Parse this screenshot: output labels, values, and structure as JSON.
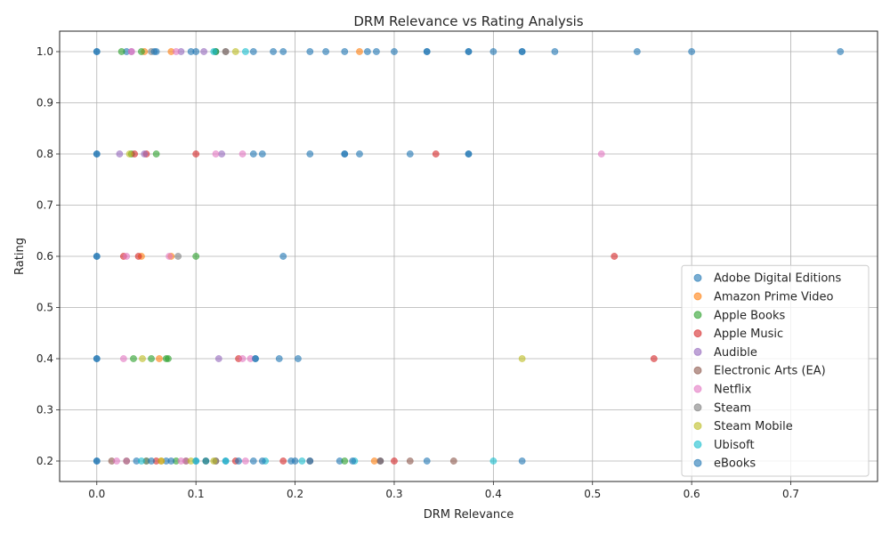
{
  "chart_data": {
    "type": "scatter",
    "title": "DRM Relevance vs Rating Analysis",
    "xlabel": "DRM Relevance",
    "ylabel": "Rating",
    "xlim": [
      -0.0375,
      0.7875
    ],
    "ylim": [
      0.16,
      1.04
    ],
    "xticks": [
      0.0,
      0.1,
      0.2,
      0.3,
      0.4,
      0.5,
      0.6,
      0.7
    ],
    "xtick_labels": [
      "0.0",
      "0.1",
      "0.2",
      "0.3",
      "0.4",
      "0.5",
      "0.6",
      "0.7"
    ],
    "yticks": [
      0.2,
      0.3,
      0.4,
      0.5,
      0.6,
      0.7,
      0.8,
      0.9,
      1.0
    ],
    "ytick_labels": [
      "0.2",
      "0.3",
      "0.4",
      "0.5",
      "0.6",
      "0.7",
      "0.8",
      "0.9",
      "1.0"
    ],
    "grid": true,
    "legend_position": "lower-right",
    "point_alpha": 0.6,
    "series": [
      {
        "name": "Adobe Digital Editions",
        "color": "#1f77b4",
        "points": [
          [
            0.0,
            1.0
          ],
          [
            0.0,
            0.8
          ],
          [
            0.0,
            0.6
          ],
          [
            0.0,
            0.4
          ],
          [
            0.0,
            0.2
          ],
          [
            0.03,
            1.0
          ],
          [
            0.06,
            1.0
          ],
          [
            0.095,
            1.0
          ],
          [
            0.12,
            1.0
          ],
          [
            0.158,
            1.0
          ],
          [
            0.188,
            1.0
          ],
          [
            0.215,
            1.0
          ],
          [
            0.25,
            1.0
          ],
          [
            0.273,
            1.0
          ],
          [
            0.3,
            1.0
          ],
          [
            0.333,
            1.0
          ],
          [
            0.375,
            1.0
          ],
          [
            0.4,
            1.0
          ],
          [
            0.429,
            1.0
          ],
          [
            0.462,
            1.0
          ],
          [
            0.545,
            1.0
          ],
          [
            0.6,
            1.0
          ],
          [
            0.75,
            1.0
          ],
          [
            0.158,
            0.8
          ],
          [
            0.167,
            0.8
          ],
          [
            0.215,
            0.8
          ],
          [
            0.25,
            0.8
          ],
          [
            0.265,
            0.8
          ],
          [
            0.316,
            0.8
          ],
          [
            0.375,
            0.8
          ],
          [
            0.188,
            0.6
          ],
          [
            0.16,
            0.4
          ],
          [
            0.184,
            0.4
          ],
          [
            0.203,
            0.4
          ],
          [
            0.04,
            0.2
          ],
          [
            0.07,
            0.2
          ],
          [
            0.1,
            0.2
          ],
          [
            0.13,
            0.2
          ],
          [
            0.158,
            0.2
          ],
          [
            0.2,
            0.2
          ],
          [
            0.245,
            0.2
          ],
          [
            0.286,
            0.2
          ],
          [
            0.333,
            0.2
          ],
          [
            0.429,
            0.2
          ]
        ]
      },
      {
        "name": "Amazon Prime Video",
        "color": "#ff7f0e",
        "points": [
          [
            0.048,
            1.0
          ],
          [
            0.075,
            1.0
          ],
          [
            0.265,
            1.0
          ],
          [
            0.045,
            0.6
          ],
          [
            0.075,
            0.6
          ],
          [
            0.063,
            0.4
          ],
          [
            0.03,
            0.2
          ],
          [
            0.065,
            0.2
          ],
          [
            0.09,
            0.2
          ],
          [
            0.28,
            0.2
          ]
        ]
      },
      {
        "name": "Apple Books",
        "color": "#2ca02c",
        "points": [
          [
            0.025,
            1.0
          ],
          [
            0.045,
            1.0
          ],
          [
            0.12,
            1.0
          ],
          [
            0.035,
            0.8
          ],
          [
            0.06,
            0.8
          ],
          [
            0.1,
            0.6
          ],
          [
            0.037,
            0.4
          ],
          [
            0.055,
            0.4
          ],
          [
            0.07,
            0.4
          ],
          [
            0.072,
            0.4
          ],
          [
            0.05,
            0.2
          ],
          [
            0.08,
            0.2
          ],
          [
            0.11,
            0.2
          ],
          [
            0.25,
            0.2
          ]
        ]
      },
      {
        "name": "Apple Music",
        "color": "#d62728",
        "points": [
          [
            0.038,
            0.8
          ],
          [
            0.05,
            0.8
          ],
          [
            0.1,
            0.8
          ],
          [
            0.342,
            0.8
          ],
          [
            0.027,
            0.6
          ],
          [
            0.042,
            0.6
          ],
          [
            0.522,
            0.6
          ],
          [
            0.143,
            0.4
          ],
          [
            0.562,
            0.4
          ],
          [
            0.06,
            0.2
          ],
          [
            0.14,
            0.2
          ],
          [
            0.188,
            0.2
          ],
          [
            0.3,
            0.2
          ]
        ]
      },
      {
        "name": "Audible",
        "color": "#9467bd",
        "points": [
          [
            0.035,
            1.0
          ],
          [
            0.085,
            1.0
          ],
          [
            0.108,
            1.0
          ],
          [
            0.023,
            0.8
          ],
          [
            0.048,
            0.8
          ],
          [
            0.126,
            0.8
          ],
          [
            0.123,
            0.4
          ],
          [
            0.03,
            0.2
          ],
          [
            0.09,
            0.2
          ]
        ]
      },
      {
        "name": "Electronic Arts (EA)",
        "color": "#8c564b",
        "points": [
          [
            0.13,
            1.0
          ],
          [
            0.015,
            0.2
          ],
          [
            0.12,
            0.2
          ],
          [
            0.215,
            0.2
          ],
          [
            0.286,
            0.2
          ],
          [
            0.316,
            0.2
          ],
          [
            0.36,
            0.2
          ]
        ]
      },
      {
        "name": "Netflix",
        "color": "#e377c2",
        "points": [
          [
            0.035,
            1.0
          ],
          [
            0.08,
            1.0
          ],
          [
            0.12,
            0.8
          ],
          [
            0.147,
            0.8
          ],
          [
            0.509,
            0.8
          ],
          [
            0.03,
            0.6
          ],
          [
            0.073,
            0.6
          ],
          [
            0.027,
            0.4
          ],
          [
            0.147,
            0.4
          ],
          [
            0.155,
            0.4
          ],
          [
            0.02,
            0.2
          ],
          [
            0.085,
            0.2
          ],
          [
            0.15,
            0.2
          ]
        ]
      },
      {
        "name": "Steam",
        "color": "#7f7f7f",
        "points": [
          [
            0.055,
            1.0
          ],
          [
            0.13,
            1.0
          ],
          [
            0.082,
            0.6
          ],
          [
            0.05,
            0.2
          ],
          [
            0.12,
            0.2
          ]
        ]
      },
      {
        "name": "Steam Mobile",
        "color": "#bcbd22",
        "points": [
          [
            0.14,
            1.0
          ],
          [
            0.033,
            0.8
          ],
          [
            0.046,
            0.4
          ],
          [
            0.429,
            0.4
          ],
          [
            0.065,
            0.2
          ],
          [
            0.095,
            0.2
          ],
          [
            0.118,
            0.2
          ]
        ]
      },
      {
        "name": "Ubisoft",
        "color": "#17becf",
        "points": [
          [
            0.118,
            1.0
          ],
          [
            0.15,
            1.0
          ],
          [
            0.045,
            0.2
          ],
          [
            0.1,
            0.2
          ],
          [
            0.13,
            0.2
          ],
          [
            0.17,
            0.2
          ],
          [
            0.207,
            0.2
          ],
          [
            0.26,
            0.2
          ],
          [
            0.4,
            0.2
          ]
        ]
      },
      {
        "name": "eBooks",
        "color": "#1f77b4",
        "points": [
          [
            0.0,
            1.0
          ],
          [
            0.0,
            0.8
          ],
          [
            0.0,
            0.6
          ],
          [
            0.0,
            0.4
          ],
          [
            0.0,
            0.2
          ],
          [
            0.058,
            1.0
          ],
          [
            0.1,
            1.0
          ],
          [
            0.178,
            1.0
          ],
          [
            0.231,
            1.0
          ],
          [
            0.282,
            1.0
          ],
          [
            0.333,
            1.0
          ],
          [
            0.375,
            1.0
          ],
          [
            0.429,
            1.0
          ],
          [
            0.25,
            0.8
          ],
          [
            0.375,
            0.8
          ],
          [
            0.16,
            0.4
          ],
          [
            0.055,
            0.2
          ],
          [
            0.075,
            0.2
          ],
          [
            0.11,
            0.2
          ],
          [
            0.143,
            0.2
          ],
          [
            0.167,
            0.2
          ],
          [
            0.196,
            0.2
          ],
          [
            0.215,
            0.2
          ],
          [
            0.258,
            0.2
          ]
        ]
      }
    ]
  }
}
